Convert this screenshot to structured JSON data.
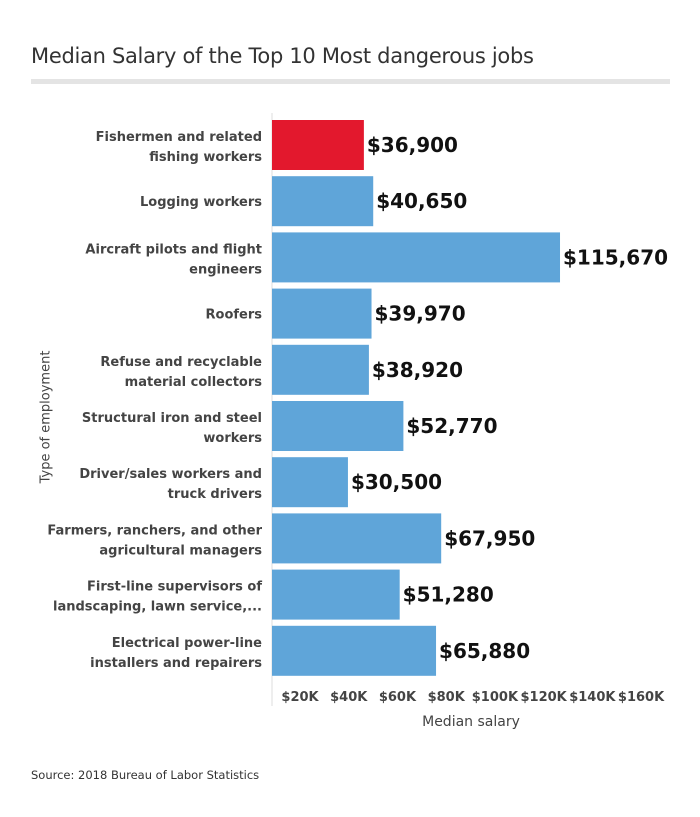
{
  "chart_data": {
    "type": "bar",
    "orientation": "horizontal",
    "title": "Median Salary of the Top 10 Most dangerous jobs",
    "xlabel": "Median salary",
    "ylabel": "Type of employment",
    "source": "Source: 2018 Bureau of Labor Statistics",
    "categories": [
      [
        "Fishermen and related",
        "fishing workers"
      ],
      [
        "Logging workers"
      ],
      [
        "Aircraft pilots and flight",
        "engineers"
      ],
      [
        "Roofers"
      ],
      [
        "Refuse and recyclable",
        "material collectors"
      ],
      [
        "Structural iron and steel",
        "workers"
      ],
      [
        "Driver/sales workers and",
        "truck drivers"
      ],
      [
        "Farmers, ranchers, and other",
        "agricultural managers"
      ],
      [
        "First-line supervisors of",
        "landscaping, lawn service,..."
      ],
      [
        "Electrical power-line",
        "installers and repairers"
      ]
    ],
    "values": [
      36900,
      40650,
      115670,
      39970,
      38920,
      52770,
      30500,
      67950,
      51280,
      65880
    ],
    "value_labels": [
      "$36,900",
      "$40,650",
      "$115,670",
      "$39,970",
      "$38,920",
      "$52,770",
      "$30,500",
      "$67,950",
      "$51,280",
      "$65,880"
    ],
    "xticks": [
      20000,
      40000,
      60000,
      80000,
      100000,
      120000,
      140000,
      160000
    ],
    "xtick_labels": [
      "$20K",
      "$40K",
      "$60K",
      "$80K",
      "$100K",
      "$120K",
      "$140K",
      "$160K"
    ],
    "xlim": [
      0,
      160000
    ],
    "grid": false,
    "colors": {
      "highlight": "#e3182d",
      "default": "#5fa5d9"
    },
    "highlight_index": 0
  }
}
